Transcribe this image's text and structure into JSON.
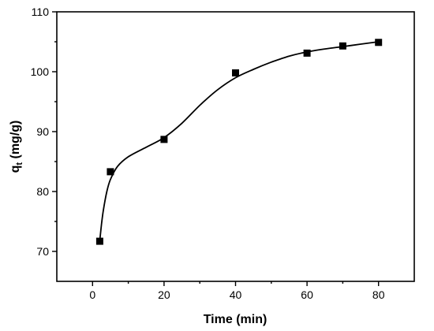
{
  "chart_data": {
    "type": "scatter",
    "title": "",
    "xlabel": "Time (min)",
    "ylabel_main": "q",
    "ylabel_sub": "t",
    "ylabel_unit": " (mg/g)",
    "xlim": [
      -10,
      90
    ],
    "ylim": [
      65,
      110
    ],
    "xticks": [
      0,
      20,
      40,
      60,
      80
    ],
    "yticks": [
      70,
      80,
      90,
      100,
      110
    ],
    "xminor": [
      10,
      30,
      50,
      70
    ],
    "yminor": [
      75,
      85,
      95,
      105
    ],
    "grid": false,
    "legend": "none",
    "series": [
      {
        "x": [
          2,
          5,
          20,
          40,
          60,
          70,
          80
        ],
        "y": [
          71.7,
          83.3,
          88.7,
          99.8,
          103.1,
          104.3,
          104.9
        ]
      }
    ],
    "fit_curve": {
      "x": [
        2,
        2.5,
        3,
        4,
        5,
        7,
        10,
        15,
        20,
        25,
        30,
        35,
        40,
        45,
        50,
        55,
        60,
        65,
        70,
        75,
        80
      ],
      "y": [
        71.7,
        74.5,
        76.8,
        80.0,
        82.0,
        84.2,
        85.8,
        87.4,
        89.0,
        91.4,
        94.4,
        97.0,
        99.0,
        100.4,
        101.6,
        102.6,
        103.3,
        103.8,
        104.2,
        104.6,
        105.0
      ]
    }
  }
}
